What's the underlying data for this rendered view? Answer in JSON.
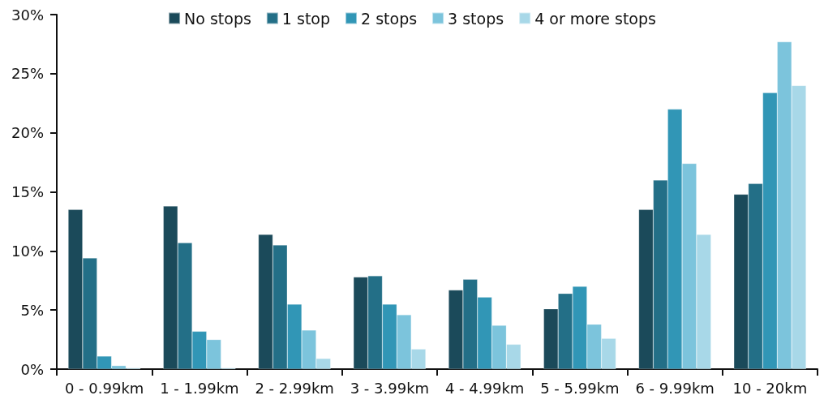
{
  "chart_data": {
    "type": "bar",
    "categories": [
      "0 - 0.99km",
      "1 - 1.99km",
      "2 - 2.99km",
      "3 - 3.99km",
      "4 - 4.99km",
      "5 - 5.99km",
      "6 - 9.99km",
      "10 - 20km"
    ],
    "series": [
      {
        "name": "No stops",
        "color": "#1b4a5a",
        "values": [
          13.5,
          13.8,
          11.4,
          7.8,
          6.7,
          5.1,
          13.5,
          14.8
        ]
      },
      {
        "name": "1 stop",
        "color": "#236f87",
        "values": [
          9.4,
          10.7,
          10.5,
          7.9,
          7.6,
          6.4,
          16.0,
          15.7
        ]
      },
      {
        "name": "2 stops",
        "color": "#3196b6",
        "values": [
          1.1,
          3.2,
          5.5,
          5.5,
          6.1,
          7.0,
          22.0,
          23.4
        ]
      },
      {
        "name": "3 stops",
        "color": "#7cc4dc",
        "values": [
          0.3,
          2.5,
          3.3,
          4.6,
          3.7,
          3.8,
          17.4,
          27.7
        ]
      },
      {
        "name": "4 or more stops",
        "color": "#a8d8e8",
        "values": [
          0.1,
          0.1,
          0.9,
          1.7,
          2.1,
          2.6,
          11.4,
          24.0
        ]
      }
    ],
    "ylim": [
      0,
      30
    ],
    "yticks": [
      {
        "value": 0,
        "label": "0%"
      },
      {
        "value": 5,
        "label": "5%"
      },
      {
        "value": 10,
        "label": "10%"
      },
      {
        "value": 15,
        "label": "15%"
      },
      {
        "value": 20,
        "label": "20%"
      },
      {
        "value": 25,
        "label": "25%"
      },
      {
        "value": 30,
        "label": "30%"
      }
    ],
    "grid": false,
    "legend": "top"
  }
}
